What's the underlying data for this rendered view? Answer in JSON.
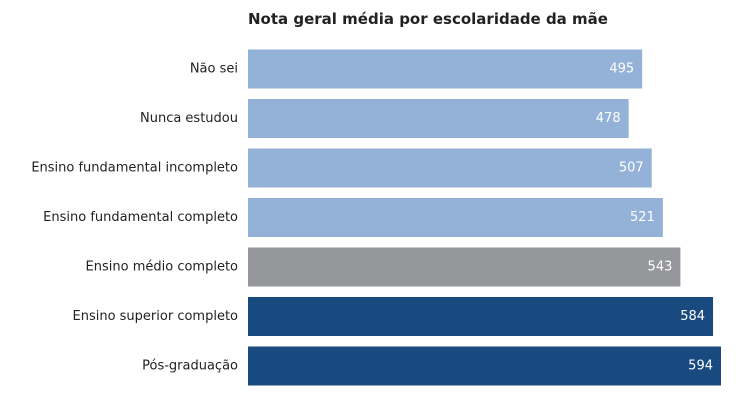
{
  "chart_data": {
    "type": "bar",
    "orientation": "horizontal",
    "title": "Nota geral média por escolaridade da mãe",
    "xlabel": "",
    "ylabel": "",
    "categories": [
      "Não sei",
      "Nunca estudou",
      "Ensino fundamental incompleto",
      "Ensino fundamental completo",
      "Ensino médio completo",
      "Ensino superior completo",
      "Pós-graduação"
    ],
    "values": [
      495,
      478,
      507,
      521,
      543,
      584,
      594
    ],
    "value_labels": [
      "495",
      "478",
      "507",
      "521",
      "543",
      "584",
      "594"
    ],
    "colors": [
      "#94b1d8",
      "#94b1d8",
      "#94b1d8",
      "#94b1d8",
      "#96979b",
      "#184a7f",
      "#184a7f"
    ],
    "xlim": [
      0,
      594
    ],
    "grid": false,
    "axes_visible": false
  }
}
